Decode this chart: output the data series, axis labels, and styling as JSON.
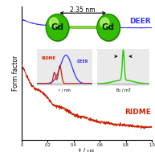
{
  "xlabel": "t / μs",
  "ylabel": "Form factor",
  "deer_label": "DEER",
  "ridme_label": "RIDME",
  "deer_color": "#3333ff",
  "ridme_color": "#cc2200",
  "green_color": "#22cc00",
  "gd_color": "#44cc00",
  "gd_dark": "#116600",
  "gd_highlight": "#99ff44",
  "distance_text": "2.35 nm",
  "inset_deer_label": "DEER",
  "inset_ridme_label": "RIDME",
  "inset_x_label1": "r / nm",
  "inset_x_label2": "B₀ / mT",
  "background_color": "#ffffff",
  "inset_bg": "#e8e8e8",
  "rod_color": "#88cc44"
}
